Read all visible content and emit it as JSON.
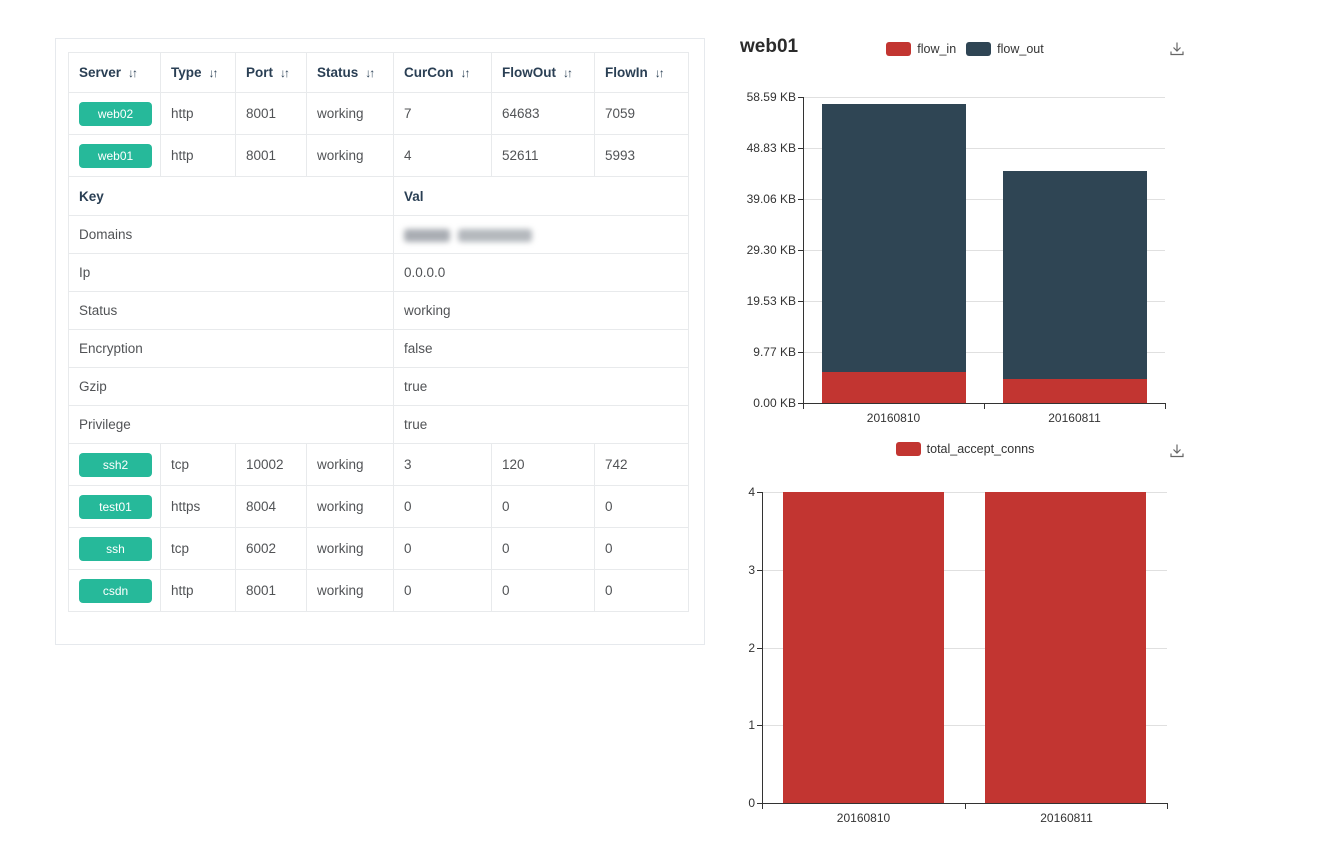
{
  "table": {
    "sort_icon": "↓↑",
    "badge_color": "#26b99a",
    "columns": [
      {
        "label": "Server"
      },
      {
        "label": "Type"
      },
      {
        "label": "Port"
      },
      {
        "label": "Status"
      },
      {
        "label": "CurCon"
      },
      {
        "label": "FlowOut"
      },
      {
        "label": "FlowIn"
      }
    ],
    "rows_top": [
      {
        "server": "web02",
        "type": "http",
        "port": "8001",
        "status": "working",
        "curcon": "7",
        "flowout": "64683",
        "flowin": "7059"
      },
      {
        "server": "web01",
        "type": "http",
        "port": "8001",
        "status": "working",
        "curcon": "4",
        "flowout": "52611",
        "flowin": "5993"
      }
    ],
    "kv_header": {
      "key": "Key",
      "val": "Val"
    },
    "kv_rows": [
      {
        "key": "Domains",
        "value": "",
        "redacted": true
      },
      {
        "key": "Ip",
        "value": "0.0.0.0"
      },
      {
        "key": "Status",
        "value": "working"
      },
      {
        "key": "Encryption",
        "value": "false"
      },
      {
        "key": "Gzip",
        "value": "true"
      },
      {
        "key": "Privilege",
        "value": "true"
      }
    ],
    "rows_bottom": [
      {
        "server": "ssh2",
        "type": "tcp",
        "port": "10002",
        "status": "working",
        "curcon": "3",
        "flowout": "120",
        "flowin": "742"
      },
      {
        "server": "test01",
        "type": "https",
        "port": "8004",
        "status": "working",
        "curcon": "0",
        "flowout": "0",
        "flowin": "0"
      },
      {
        "server": "ssh",
        "type": "tcp",
        "port": "6002",
        "status": "working",
        "curcon": "0",
        "flowout": "0",
        "flowin": "0"
      },
      {
        "server": "csdn",
        "type": "http",
        "port": "8001",
        "status": "working",
        "curcon": "0",
        "flowout": "0",
        "flowin": "0"
      }
    ]
  },
  "chart_data": [
    {
      "id": "flow",
      "type": "bar",
      "stacked": true,
      "title": "web01",
      "categories": [
        "20160810",
        "20160811"
      ],
      "series": [
        {
          "name": "flow_in",
          "color": "#c23531",
          "values": [
            5993,
            4700
          ]
        },
        {
          "name": "flow_out",
          "color": "#2f4554",
          "values": [
            52611,
            40800
          ]
        }
      ],
      "unit": "bytes shown as KB",
      "ylim": [
        0,
        60000
      ],
      "ytick_step": 10000,
      "ytick_labels": [
        "0.00 KB",
        "9.77 KB",
        "19.53 KB",
        "29.30 KB",
        "39.06 KB",
        "48.83 KB",
        "58.59 KB"
      ],
      "xlabel": "",
      "ylabel": "",
      "legend_position": "top-center",
      "grid": true
    },
    {
      "id": "conns",
      "type": "bar",
      "stacked": false,
      "title": "",
      "categories": [
        "20160810",
        "20160811"
      ],
      "series": [
        {
          "name": "total_accept_conns",
          "color": "#c23531",
          "values": [
            4,
            4
          ]
        }
      ],
      "ylim": [
        0,
        4
      ],
      "ytick_step": 1,
      "ytick_labels": [
        "0",
        "1",
        "2",
        "3",
        "4"
      ],
      "xlabel": "",
      "ylabel": "",
      "legend_position": "top-center",
      "grid": true
    }
  ]
}
